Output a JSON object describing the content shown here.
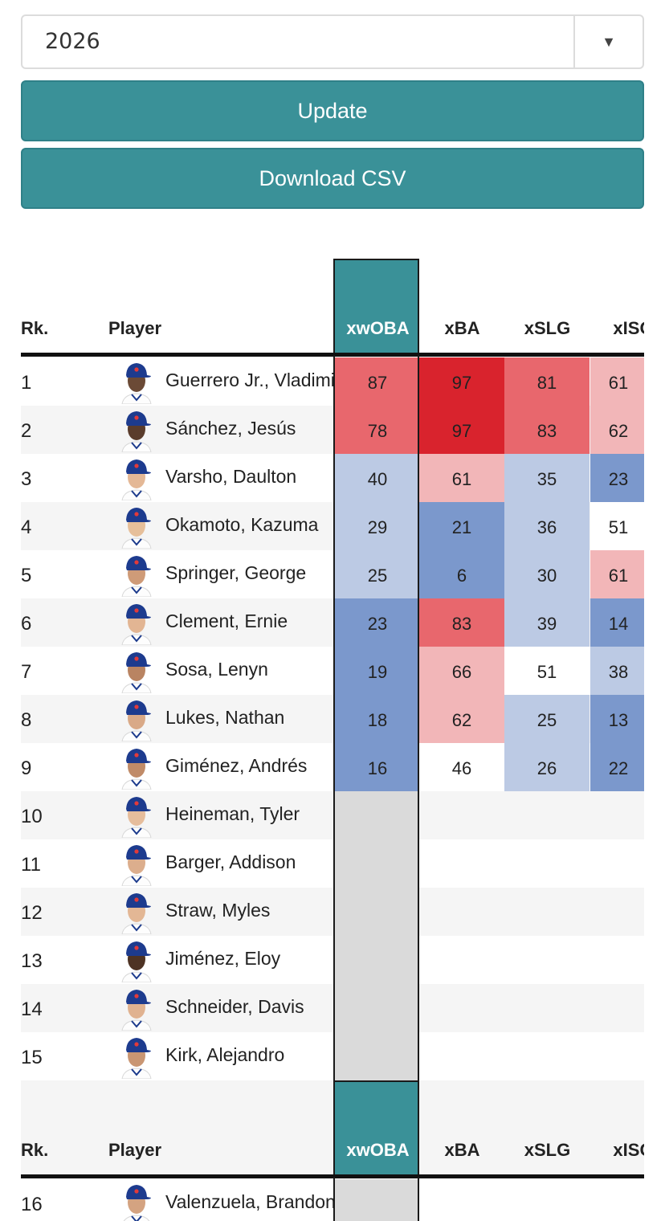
{
  "season_select": {
    "value": "2026",
    "arrow": "▼"
  },
  "buttons": {
    "update": "Update",
    "download": "Download CSV"
  },
  "colors": {
    "teal": "#3a9198",
    "red_strong": "#d9232d",
    "red_mid": "#e8676d",
    "red_light": "#f2b6b8",
    "blue_light": "#bccae4",
    "blue_mid": "#7b98cc",
    "neutral": "#ffffff",
    "empty": "#dadada"
  },
  "columns": {
    "rank": "Rk.",
    "player": "Player",
    "c1": "xwOBA",
    "c2": "xBA",
    "c3": "xSLG",
    "c4": "xISO"
  },
  "rows": [
    {
      "rk": "1",
      "name": "Guerrero Jr., Vladimir",
      "skin": "#6b4a36",
      "vals": [
        "87",
        "97",
        "81",
        "61"
      ],
      "shades": [
        "red_mid",
        "red_strong",
        "red_mid",
        "red_light"
      ]
    },
    {
      "rk": "2",
      "name": "Sánchez, Jesús",
      "skin": "#5a3c2c",
      "vals": [
        "78",
        "97",
        "83",
        "62"
      ],
      "shades": [
        "red_mid",
        "red_strong",
        "red_mid",
        "red_light"
      ]
    },
    {
      "rk": "3",
      "name": "Varsho, Daulton",
      "skin": "#e4b896",
      "vals": [
        "40",
        "61",
        "35",
        "23"
      ],
      "shades": [
        "blue_light",
        "red_light",
        "blue_light",
        "blue_mid"
      ]
    },
    {
      "rk": "4",
      "name": "Okamoto, Kazuma",
      "skin": "#e6bf9a",
      "vals": [
        "29",
        "21",
        "36",
        "51"
      ],
      "shades": [
        "blue_light",
        "blue_mid",
        "blue_light",
        "neutral"
      ]
    },
    {
      "rk": "5",
      "name": "Springer, George",
      "skin": "#cf9b78",
      "vals": [
        "25",
        "6",
        "30",
        "61"
      ],
      "shades": [
        "blue_light",
        "blue_mid",
        "blue_light",
        "red_light"
      ]
    },
    {
      "rk": "6",
      "name": "Clement, Ernie",
      "skin": "#e2b593",
      "vals": [
        "23",
        "83",
        "39",
        "14"
      ],
      "shades": [
        "blue_mid",
        "red_mid",
        "blue_light",
        "blue_mid"
      ]
    },
    {
      "rk": "7",
      "name": "Sosa, Lenyn",
      "skin": "#b98462",
      "vals": [
        "19",
        "66",
        "51",
        "38"
      ],
      "shades": [
        "blue_mid",
        "red_light",
        "neutral",
        "blue_light"
      ]
    },
    {
      "rk": "8",
      "name": "Lukes, Nathan",
      "skin": "#d9a987",
      "vals": [
        "18",
        "62",
        "25",
        "13"
      ],
      "shades": [
        "blue_mid",
        "red_light",
        "blue_light",
        "blue_mid"
      ]
    },
    {
      "rk": "9",
      "name": "Giménez, Andrés",
      "skin": "#c08b68",
      "vals": [
        "16",
        "46",
        "26",
        "22"
      ],
      "shades": [
        "blue_mid",
        "neutral",
        "blue_light",
        "blue_mid"
      ]
    },
    {
      "rk": "10",
      "name": "Heineman, Tyler",
      "skin": "#e6bd9c",
      "vals": [],
      "shades": []
    },
    {
      "rk": "11",
      "name": "Barger, Addison",
      "skin": "#dcae8d",
      "vals": [],
      "shades": []
    },
    {
      "rk": "12",
      "name": "Straw, Myles",
      "skin": "#e3b795",
      "vals": [],
      "shades": []
    },
    {
      "rk": "13",
      "name": "Jiménez, Eloy",
      "skin": "#4e3324",
      "vals": [],
      "shades": []
    },
    {
      "rk": "14",
      "name": "Schneider, Davis",
      "skin": "#e0b290",
      "vals": [],
      "shades": []
    },
    {
      "rk": "15",
      "name": "Kirk, Alejandro",
      "skin": "#c99673",
      "vals": [],
      "shades": []
    },
    {
      "rk": "16",
      "name": "Valenzuela, Brandon",
      "skin": "#d4a381",
      "vals": [],
      "shades": []
    }
  ]
}
